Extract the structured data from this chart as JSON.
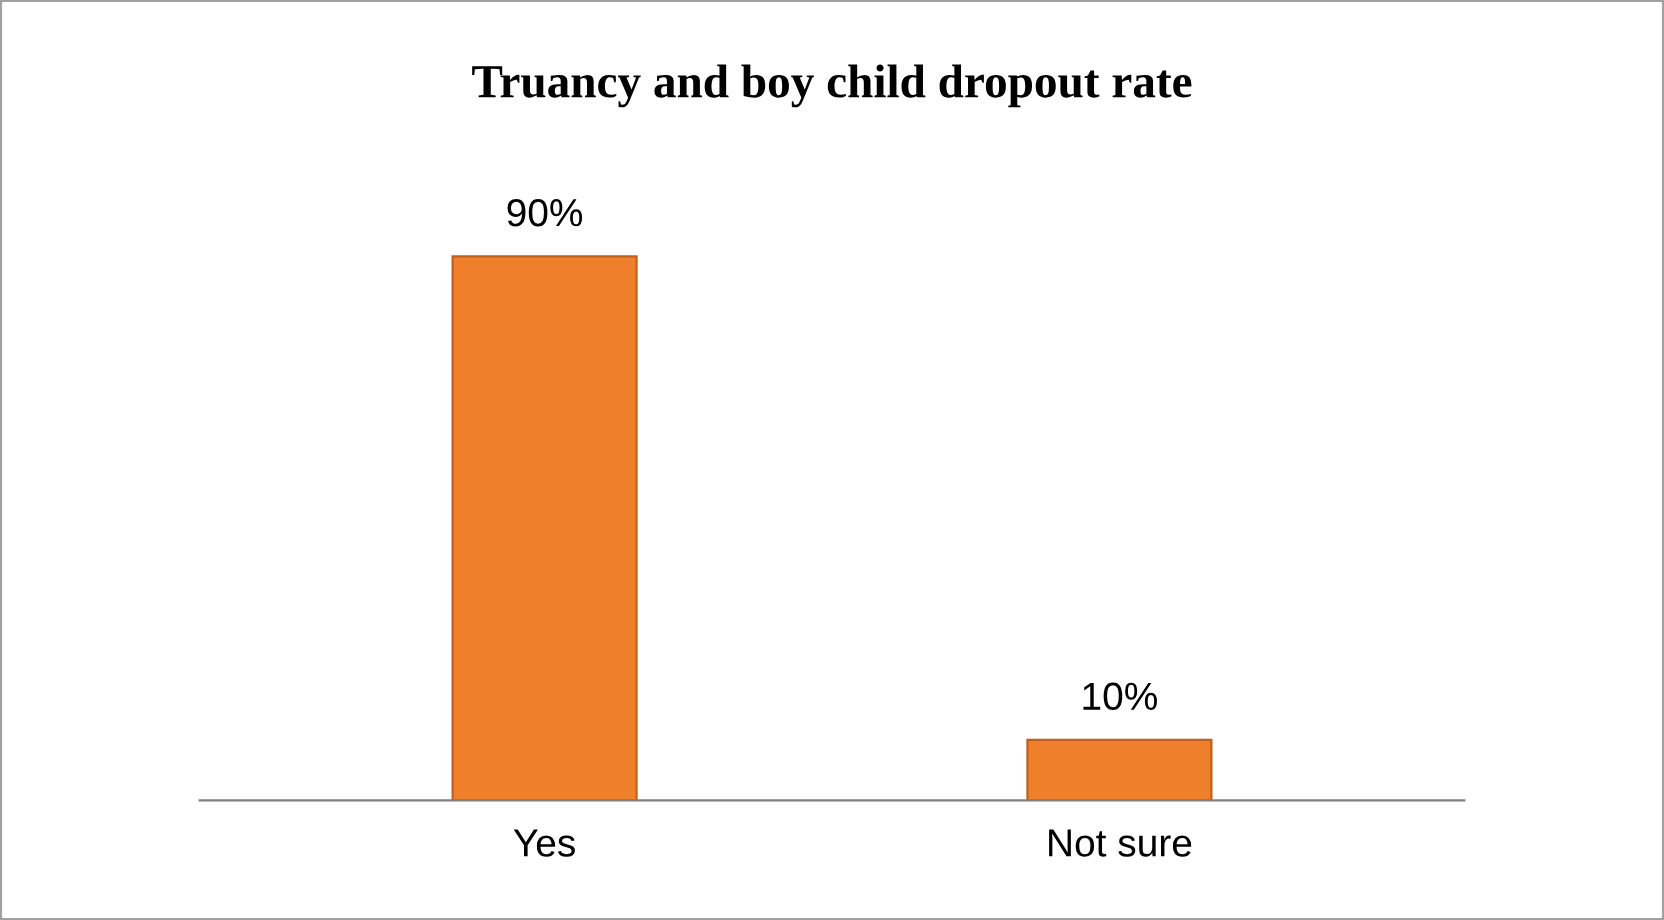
{
  "chart_data": {
    "type": "bar",
    "title": "Truancy and boy child dropout rate",
    "categories": [
      "Yes",
      "Not sure"
    ],
    "values": [
      90,
      10
    ],
    "value_labels": [
      "90%",
      "10%"
    ],
    "color": "#f07f2c",
    "grid": false,
    "legend": false
  }
}
